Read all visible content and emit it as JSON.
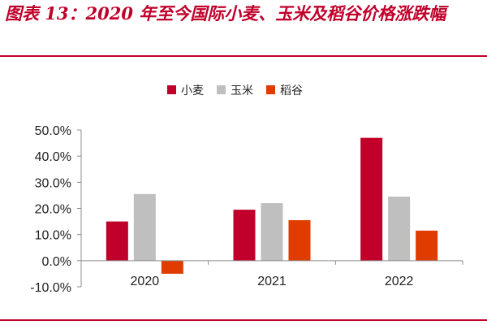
{
  "title": "图表 13：2020 年至今国际小麦、玉米及稻谷价格涨跌幅",
  "chart_data": {
    "type": "bar",
    "title": "图表 13：2020 年至今国际小麦、玉米及稻谷价格涨跌幅",
    "xlabel": "",
    "ylabel": "",
    "categories": [
      "2020",
      "2021",
      "2022"
    ],
    "series": [
      {
        "name": "小麦",
        "color": "#c0002a",
        "values": [
          15.0,
          19.5,
          47.0
        ]
      },
      {
        "name": "玉米",
        "color": "#bfbfbf",
        "values": [
          25.5,
          22.0,
          24.5
        ]
      },
      {
        "name": "稻谷",
        "color": "#e03c00",
        "values": [
          -5.0,
          15.5,
          11.5
        ]
      }
    ],
    "ylim": [
      -10,
      50
    ],
    "yticks": [
      "-10.0%",
      "0.0%",
      "10.0%",
      "20.0%",
      "30.0%",
      "40.0%",
      "50.0%"
    ],
    "ytick_values": [
      -10,
      0,
      10,
      20,
      30,
      40,
      50
    ],
    "legend_position": "top",
    "grid": false
  }
}
